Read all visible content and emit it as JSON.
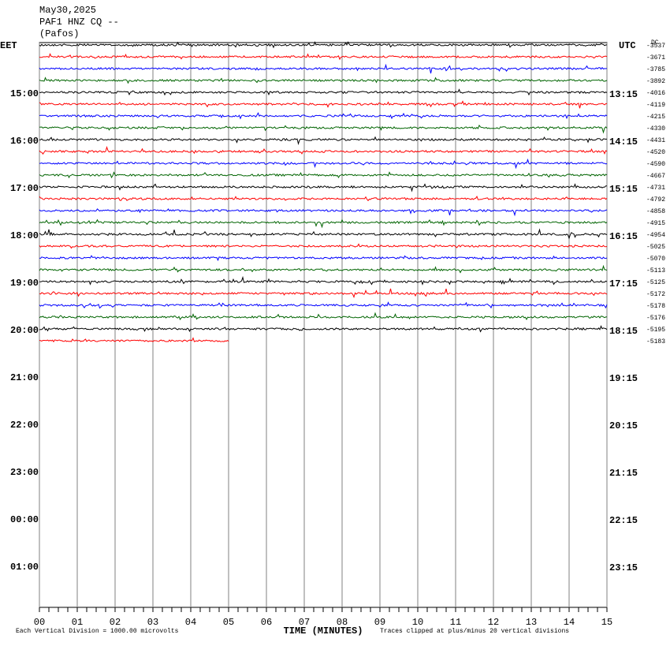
{
  "chart_data": {
    "type": "helicorder",
    "header": [
      "May30,2025",
      "PAF1 HNZ CQ --",
      "(Pafos)"
    ],
    "left_label": "EET",
    "right_label": "UTC",
    "offset_label": "DC",
    "eet_hours": [
      "15:00",
      "16:00",
      "17:00",
      "18:00",
      "19:00",
      "20:00",
      "21:00",
      "22:00",
      "23:00",
      "00:00",
      "01:00"
    ],
    "utc_hours": [
      "13:15",
      "14:15",
      "15:15",
      "16:15",
      "17:15",
      "18:15",
      "19:15",
      "20:15",
      "21:15",
      "22:15",
      "23:15"
    ],
    "trace_offsets": [
      -3537,
      -3671,
      -3785,
      -3892,
      -4016,
      -4119,
      -4215,
      -4330,
      -4431,
      -4520,
      -4590,
      -4667,
      -4731,
      -4792,
      -4858,
      -4915,
      -4954,
      -5025,
      -5070,
      -5113,
      -5125,
      -5172,
      -5178,
      -5176,
      -5195,
      -5183
    ],
    "colors": [
      "#000000",
      "#ff0000",
      "#0000ff",
      "#006400"
    ],
    "last_trace_end": 5,
    "xlim": [
      0,
      15
    ],
    "xticks": [
      {
        "value": 0,
        "label": "00"
      },
      {
        "value": 1,
        "label": "01"
      },
      {
        "value": 2,
        "label": "02"
      },
      {
        "value": 3,
        "label": "03"
      },
      {
        "value": 4,
        "label": "04"
      },
      {
        "value": 5,
        "label": "05"
      },
      {
        "value": 6,
        "label": "06"
      },
      {
        "value": 7,
        "label": "07"
      },
      {
        "value": 8,
        "label": "08"
      },
      {
        "value": 9,
        "label": "09"
      },
      10,
      11,
      12,
      13,
      14,
      15
    ],
    "xlabel": "TIME (MINUTES)",
    "footnote_left": "Each Vertical Division = 1000.00 microvolts",
    "footnote_right": "Traces clipped at plus/minus 20 vertical divisions"
  }
}
